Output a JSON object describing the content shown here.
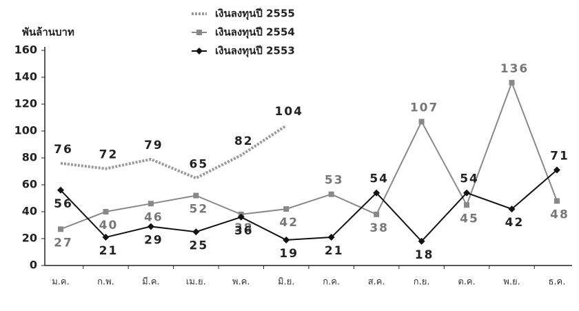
{
  "chart_data": {
    "type": "line",
    "y_axis_label": "พันล้านบาท",
    "categories": [
      "ม.ค.",
      "ก.พ.",
      "มี.ค.",
      "เม.ย.",
      "พ.ค.",
      "มิ.ย.",
      "ก.ค.",
      "ส.ค.",
      "ก.ย.",
      "ต.ค.",
      "พ.ย.",
      "ธ.ค."
    ],
    "series": [
      {
        "name": "เงินลงทุนปี 2555",
        "color": "#999999",
        "style": "dotted",
        "marker": "none",
        "values": [
          76,
          72,
          79,
          65,
          82,
          104,
          null,
          null,
          null,
          null,
          null,
          null
        ]
      },
      {
        "name": "เงินลงทุนปี 2554",
        "color": "#888888",
        "style": "solid",
        "marker": "square",
        "values": [
          27,
          40,
          46,
          52,
          38,
          42,
          53,
          38,
          107,
          45,
          136,
          48
        ]
      },
      {
        "name": "เงินลงทุนปี 2553",
        "color": "#111111",
        "style": "solid",
        "marker": "diamond",
        "values": [
          56,
          21,
          29,
          25,
          36,
          19,
          21,
          54,
          18,
          54,
          42,
          71
        ]
      }
    ],
    "ylim": [
      0,
      160
    ],
    "yticks": [
      0,
      20,
      40,
      60,
      80,
      100,
      120,
      140,
      160
    ],
    "grid": false
  }
}
